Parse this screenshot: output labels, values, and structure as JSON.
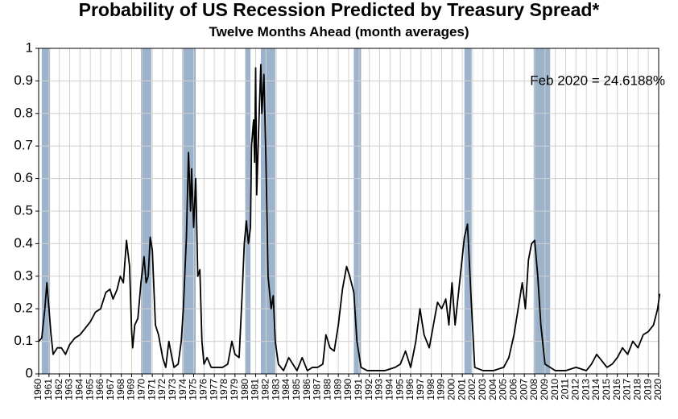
{
  "chart_data": {
    "type": "line",
    "title": "Probability of US Recession Predicted by Treasury Spread*",
    "subtitle": "Twelve Months Ahead (month averages)",
    "annotation": "Feb 2020 = 24.6188%",
    "xlim": [
      1960,
      2020
    ],
    "ylim": [
      0,
      1
    ],
    "xticks": [
      1960,
      1961,
      1962,
      1963,
      1964,
      1965,
      1966,
      1967,
      1968,
      1969,
      1970,
      1971,
      1972,
      1973,
      1974,
      1975,
      1976,
      1977,
      1978,
      1979,
      1980,
      1981,
      1982,
      1983,
      1984,
      1985,
      1986,
      1987,
      1988,
      1989,
      1990,
      1991,
      1992,
      1993,
      1994,
      1995,
      1996,
      1997,
      1998,
      1999,
      2000,
      2001,
      2002,
      2003,
      2004,
      2005,
      2006,
      2007,
      2008,
      2009,
      2010,
      2011,
      2012,
      2013,
      2014,
      2015,
      2016,
      2017,
      2018,
      2019,
      2020
    ],
    "yticks": [
      0,
      0.1,
      0.2,
      0.3,
      0.4,
      0.5,
      0.6,
      0.7,
      0.8,
      0.9,
      1
    ],
    "grid": true,
    "recession_color": "#9cb3cb",
    "recessions": [
      [
        1960.3,
        1961.1
      ],
      [
        1969.9,
        1970.9
      ],
      [
        1973.9,
        1975.2
      ],
      [
        1980.0,
        1980.5
      ],
      [
        1981.5,
        1982.9
      ],
      [
        1990.5,
        1991.2
      ],
      [
        2001.2,
        2001.9
      ],
      [
        2007.9,
        2009.5
      ]
    ],
    "series": [
      {
        "color": "#000000",
        "x": [
          1960.0,
          1960.3,
          1960.6,
          1960.8,
          1961.0,
          1961.2,
          1961.4,
          1961.8,
          1962.2,
          1962.6,
          1963.0,
          1963.5,
          1964.0,
          1964.5,
          1965.0,
          1965.5,
          1966.0,
          1966.5,
          1966.9,
          1967.2,
          1967.6,
          1967.9,
          1968.2,
          1968.5,
          1968.8,
          1969.0,
          1969.1,
          1969.3,
          1969.6,
          1969.9,
          1970.2,
          1970.4,
          1970.6,
          1970.8,
          1971.0,
          1971.3,
          1971.6,
          1972.0,
          1972.3,
          1972.6,
          1972.9,
          1973.1,
          1973.5,
          1973.8,
          1974.0,
          1974.3,
          1974.5,
          1974.7,
          1974.8,
          1975.0,
          1975.2,
          1975.4,
          1975.6,
          1975.8,
          1976.0,
          1976.3,
          1976.7,
          1977.2,
          1977.8,
          1978.3,
          1978.7,
          1979.0,
          1979.4,
          1979.7,
          1979.9,
          1980.1,
          1980.3,
          1980.5,
          1980.6,
          1980.8,
          1980.9,
          1981.0,
          1981.1,
          1981.3,
          1981.5,
          1981.6,
          1981.8,
          1982.0,
          1982.2,
          1982.5,
          1982.7,
          1982.9,
          1983.2,
          1983.7,
          1984.2,
          1984.6,
          1985.0,
          1985.5,
          1986.0,
          1986.5,
          1987.0,
          1987.5,
          1987.8,
          1988.2,
          1988.6,
          1989.0,
          1989.4,
          1989.8,
          1990.1,
          1990.5,
          1990.8,
          1991.2,
          1991.8,
          1992.5,
          1993.5,
          1994.5,
          1995.0,
          1995.5,
          1996.0,
          1996.5,
          1996.9,
          1997.3,
          1997.8,
          1998.2,
          1998.6,
          1999.0,
          1999.4,
          1999.7,
          2000.0,
          2000.3,
          2000.8,
          2001.2,
          2001.5,
          2001.9,
          2002.2,
          2003.0,
          2004.0,
          2005.0,
          2005.5,
          2006.0,
          2006.5,
          2006.8,
          2007.1,
          2007.4,
          2007.7,
          2008.0,
          2008.3,
          2008.6,
          2009.0,
          2010.0,
          2011.0,
          2012.0,
          2013.0,
          2013.5,
          2014.0,
          2014.5,
          2015.0,
          2015.5,
          2016.0,
          2016.5,
          2017.0,
          2017.5,
          2018.0,
          2018.5,
          2019.0,
          2019.5,
          2019.9,
          2020.1
        ],
        "values": [
          0.1,
          0.11,
          0.2,
          0.28,
          0.2,
          0.12,
          0.06,
          0.08,
          0.08,
          0.06,
          0.09,
          0.11,
          0.12,
          0.14,
          0.16,
          0.19,
          0.2,
          0.25,
          0.26,
          0.23,
          0.26,
          0.3,
          0.28,
          0.41,
          0.33,
          0.13,
          0.08,
          0.15,
          0.17,
          0.28,
          0.36,
          0.28,
          0.3,
          0.42,
          0.38,
          0.15,
          0.12,
          0.05,
          0.02,
          0.1,
          0.05,
          0.02,
          0.03,
          0.1,
          0.2,
          0.42,
          0.68,
          0.5,
          0.63,
          0.45,
          0.6,
          0.3,
          0.32,
          0.1,
          0.03,
          0.05,
          0.02,
          0.02,
          0.02,
          0.03,
          0.1,
          0.06,
          0.05,
          0.25,
          0.4,
          0.47,
          0.4,
          0.45,
          0.7,
          0.78,
          0.65,
          0.94,
          0.55,
          0.76,
          0.95,
          0.8,
          0.92,
          0.65,
          0.3,
          0.2,
          0.24,
          0.1,
          0.03,
          0.01,
          0.05,
          0.03,
          0.01,
          0.05,
          0.01,
          0.02,
          0.02,
          0.03,
          0.12,
          0.08,
          0.07,
          0.15,
          0.26,
          0.33,
          0.3,
          0.25,
          0.1,
          0.02,
          0.01,
          0.01,
          0.01,
          0.02,
          0.03,
          0.07,
          0.02,
          0.1,
          0.2,
          0.12,
          0.08,
          0.15,
          0.22,
          0.2,
          0.23,
          0.15,
          0.28,
          0.15,
          0.3,
          0.42,
          0.46,
          0.2,
          0.02,
          0.01,
          0.01,
          0.02,
          0.05,
          0.12,
          0.22,
          0.28,
          0.2,
          0.35,
          0.4,
          0.41,
          0.3,
          0.15,
          0.03,
          0.01,
          0.01,
          0.02,
          0.01,
          0.03,
          0.06,
          0.04,
          0.02,
          0.03,
          0.05,
          0.08,
          0.06,
          0.1,
          0.08,
          0.12,
          0.13,
          0.15,
          0.2,
          0.246
        ]
      }
    ]
  }
}
